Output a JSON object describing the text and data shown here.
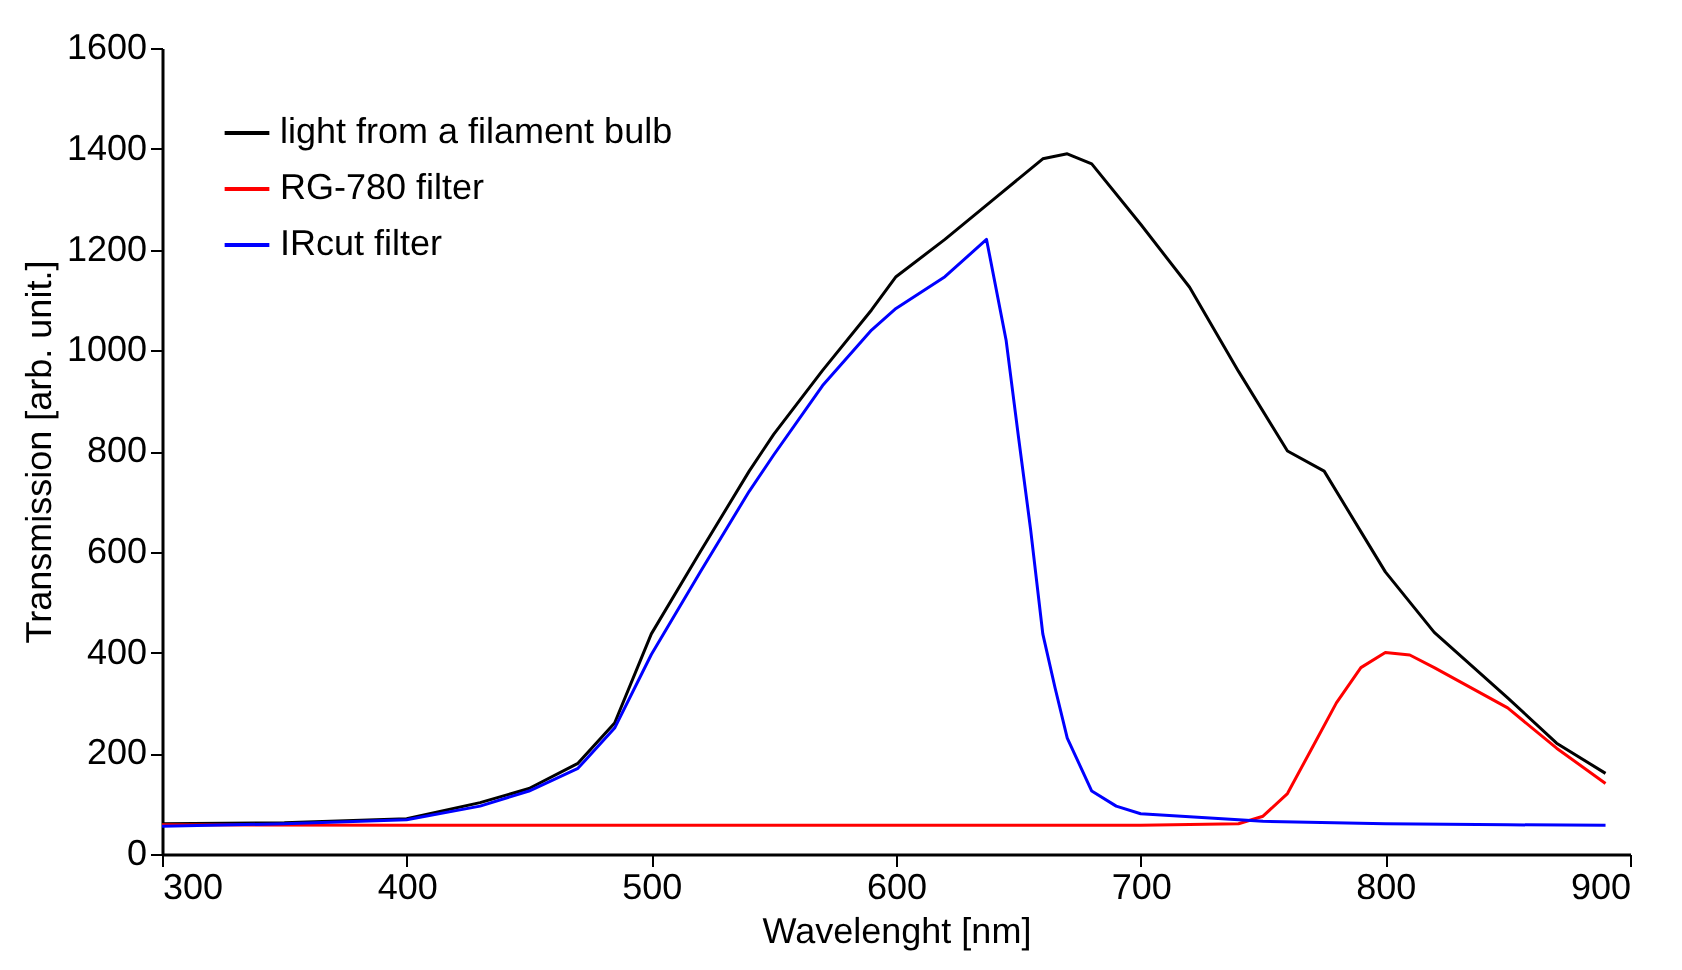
{
  "chart_data": {
    "type": "line",
    "xlabel": "Wavelenght [nm]",
    "ylabel": "Transmission [arb. unit.]",
    "xlim": [
      300,
      900
    ],
    "ylim": [
      0,
      1600
    ],
    "xticks": [
      300,
      400,
      500,
      600,
      700,
      800,
      900
    ],
    "yticks": [
      0,
      200,
      400,
      600,
      800,
      1000,
      1200,
      1400,
      1600
    ],
    "grid": false,
    "legend": "top left",
    "marker": "none",
    "line_style": "solid",
    "series": [
      {
        "name": "light from a filament bulb",
        "color": "#000000",
        "x": [
          300,
          350,
          400,
          430,
          450,
          470,
          485,
          500,
          520,
          540,
          550,
          570,
          590,
          600,
          620,
          640,
          660,
          670,
          680,
          700,
          720,
          740,
          760,
          775,
          790,
          800,
          820,
          850,
          870,
          890
        ],
        "values": [
          60,
          62,
          70,
          102,
          130,
          180,
          260,
          437,
          600,
          760,
          833,
          960,
          1080,
          1146,
          1220,
          1300,
          1380,
          1390,
          1370,
          1250,
          1125,
          958,
          800,
          760,
          640,
          560,
          440,
          310,
          220,
          160
        ]
      },
      {
        "name": "RG-780 filter",
        "color": "#ff0000",
        "x": [
          300,
          400,
          500,
          600,
          700,
          740,
          750,
          760,
          770,
          780,
          790,
          800,
          810,
          820,
          850,
          870,
          890
        ],
        "values": [
          58,
          57,
          57,
          57,
          57,
          60,
          75,
          120,
          210,
          300,
          370,
          400,
          395,
          370,
          290,
          210,
          140
        ]
      },
      {
        "name": "IRcut filter",
        "color": "#0000ff",
        "x": [
          300,
          350,
          400,
          430,
          450,
          470,
          485,
          500,
          520,
          540,
          550,
          570,
          590,
          600,
          620,
          637,
          645,
          650,
          655,
          660,
          665,
          670,
          680,
          690,
          700,
          750,
          800,
          850,
          890
        ],
        "values": [
          55,
          60,
          68,
          95,
          125,
          170,
          250,
          396,
          560,
          720,
          792,
          930,
          1040,
          1083,
          1146,
          1220,
          1020,
          830,
          645,
          437,
          330,
          230,
          125,
          95,
          80,
          65,
          60,
          58,
          57
        ]
      }
    ]
  }
}
